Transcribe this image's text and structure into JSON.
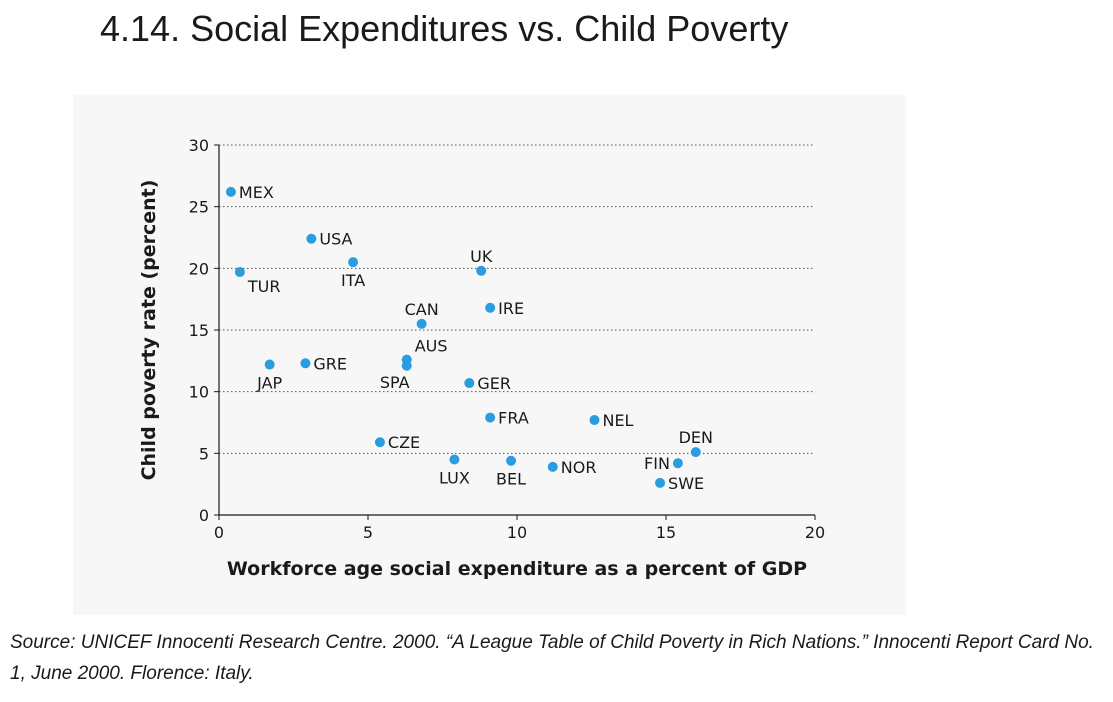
{
  "slide": {
    "title": "4.14. Social Expenditures vs. Child Poverty",
    "source": "Source: UNICEF Innocenti Research Centre. 2000. “A League Table of Child Poverty in Rich Nations.” Innocenti Report Card No. 1, June 2000. Florence: Italy."
  },
  "colors": {
    "point": "#2a9de0",
    "grid": "#555555",
    "panel": "#f7f7f7"
  },
  "chart_data": {
    "type": "scatter",
    "title": "",
    "xlabel": "Workforce age social expenditure as a percent of GDP",
    "ylabel": "Child poverty rate (percent)",
    "xlim": [
      0,
      20
    ],
    "ylim": [
      0,
      30
    ],
    "xticks": [
      0,
      5,
      10,
      15,
      20
    ],
    "yticks": [
      0,
      5,
      10,
      15,
      20,
      25,
      30
    ],
    "grid": "horizontal dotted",
    "points": [
      {
        "label": "MEX",
        "x": 0.4,
        "y": 26.2,
        "label_pos": "right"
      },
      {
        "label": "USA",
        "x": 3.1,
        "y": 22.4,
        "label_pos": "right"
      },
      {
        "label": "TUR",
        "x": 0.7,
        "y": 19.7,
        "label_pos": "below-right"
      },
      {
        "label": "ITA",
        "x": 4.5,
        "y": 20.5,
        "label_pos": "below"
      },
      {
        "label": "UK",
        "x": 8.8,
        "y": 19.8,
        "label_pos": "above"
      },
      {
        "label": "IRE",
        "x": 9.1,
        "y": 16.8,
        "label_pos": "right"
      },
      {
        "label": "CAN",
        "x": 6.8,
        "y": 15.5,
        "label_pos": "above"
      },
      {
        "label": "AUS",
        "x": 6.3,
        "y": 12.6,
        "label_pos": "above-right"
      },
      {
        "label": "SPA",
        "x": 6.3,
        "y": 12.1,
        "label_pos": "below-left"
      },
      {
        "label": "JAP",
        "x": 1.7,
        "y": 12.2,
        "label_pos": "below"
      },
      {
        "label": "GRE",
        "x": 2.9,
        "y": 12.3,
        "label_pos": "right"
      },
      {
        "label": "GER",
        "x": 8.4,
        "y": 10.7,
        "label_pos": "right"
      },
      {
        "label": "FRA",
        "x": 9.1,
        "y": 7.9,
        "label_pos": "right"
      },
      {
        "label": "NEL",
        "x": 12.6,
        "y": 7.7,
        "label_pos": "right"
      },
      {
        "label": "CZE",
        "x": 5.4,
        "y": 5.9,
        "label_pos": "right"
      },
      {
        "label": "DEN",
        "x": 16.0,
        "y": 5.1,
        "label_pos": "above"
      },
      {
        "label": "LUX",
        "x": 7.9,
        "y": 4.5,
        "label_pos": "below"
      },
      {
        "label": "BEL",
        "x": 9.8,
        "y": 4.4,
        "label_pos": "below"
      },
      {
        "label": "NOR",
        "x": 11.2,
        "y": 3.9,
        "label_pos": "right"
      },
      {
        "label": "FIN",
        "x": 15.4,
        "y": 4.2,
        "label_pos": "left"
      },
      {
        "label": "SWE",
        "x": 14.8,
        "y": 2.6,
        "label_pos": "right"
      }
    ]
  }
}
